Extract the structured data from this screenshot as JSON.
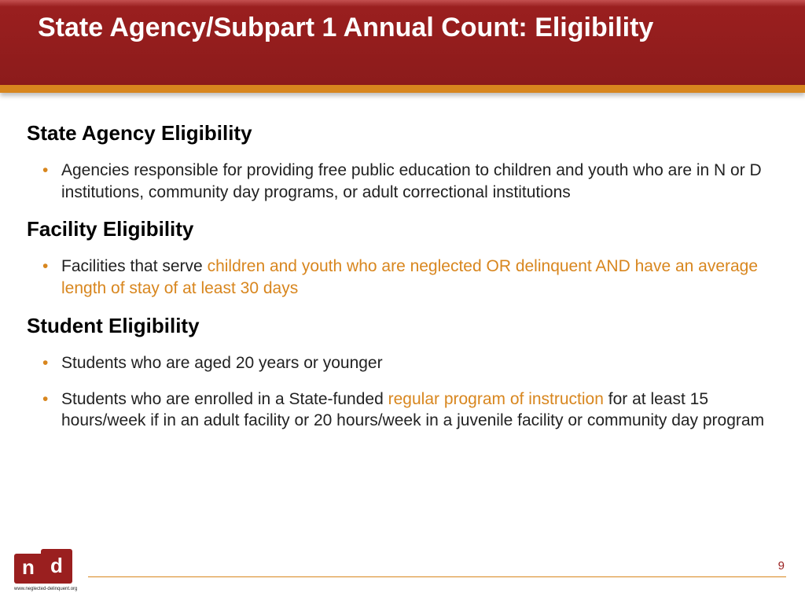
{
  "header": {
    "title": "State Agency/Subpart 1 Annual Count: Eligibility"
  },
  "sections": {
    "s1": {
      "heading": "State Agency Eligibility",
      "b1": "Agencies responsible for providing free public education to children and youth who are in N or D institutions, community day programs, or adult correctional institutions"
    },
    "s2": {
      "heading": "Facility Eligibility",
      "b1_pre": "Facilities that serve ",
      "b1_hl": "children and youth who are neglected OR delinquent AND have an average length of stay of at least 30 days"
    },
    "s3": {
      "heading": "Student Eligibility",
      "b1": "Students who are aged 20 years or younger",
      "b2_pre": "Students who are enrolled in a State-funded ",
      "b2_hl": "regular program of instruction",
      "b2_post": " for at least 15 hours/week if in an adult facility or 20 hours/week in a juvenile facility or community day program"
    }
  },
  "footer": {
    "page_number": "9",
    "logo_url": "www.neglected-delinquent.org"
  },
  "colors": {
    "header_bg": "#8c1b1b",
    "accent": "#d8861e",
    "highlight": "#d8861e",
    "text": "#222222"
  }
}
